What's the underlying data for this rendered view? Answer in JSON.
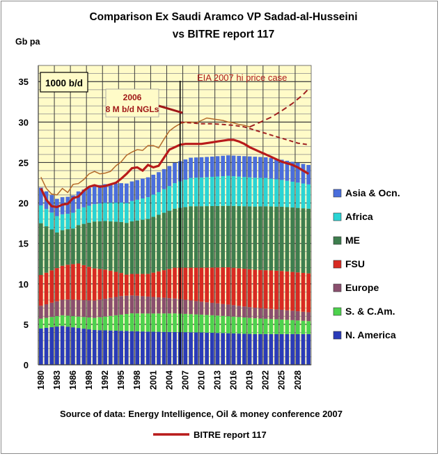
{
  "chart_data": {
    "type": "bar",
    "stacked": true,
    "title_line1": "Comparison Ex Saudi Aramco VP Sadad-al-Husseini",
    "title_line2": "vs BITRE report 117",
    "ylabel": "Gb pa",
    "ylim": [
      0,
      37
    ],
    "yticks": [
      0,
      5,
      10,
      15,
      20,
      25,
      30,
      35
    ],
    "x_start": 1980,
    "x_end": 2030,
    "xtick_labels": [
      "1980",
      "1983",
      "1986",
      "1989",
      "1992",
      "1995",
      "1998",
      "2001",
      "2004",
      "2007",
      "2010",
      "2013",
      "2016",
      "2019",
      "2022",
      "2025",
      "2028"
    ],
    "grid": true,
    "legend_position": "right",
    "annotations": {
      "unit_box": "1000 b/d",
      "ngl_label_line1": "2006",
      "ngl_label_line2": "8 M b/d NGLs",
      "eia_label": "EIA 2007 hi price case",
      "vertical_marker_year": 2006
    },
    "source_text": "Source of data: Energy Intelligence, Oil & money conference 2007",
    "line_legend_label": "BITRE report 117",
    "colors": {
      "plot_bg": "#fffbc8",
      "n_america": "#2a3bb8",
      "s_c_am": "#4dd24d",
      "europe": "#8a4f6e",
      "fsu": "#d82a22",
      "me": "#3e7e4e",
      "africa": "#2ad4d4",
      "asia_ocn": "#4a6edc",
      "bitre_line": "#b81a1a",
      "dashed_line": "#a02020",
      "thin_line": "#b46a2a"
    },
    "stacked_series": [
      {
        "name": "N. America",
        "key": "n_america",
        "anchors": [
          [
            1980,
            4.5
          ],
          [
            1984,
            4.8
          ],
          [
            1990,
            4.3
          ],
          [
            2000,
            4.1
          ],
          [
            2010,
            4.0
          ],
          [
            2020,
            3.8
          ],
          [
            2030,
            3.8
          ]
        ]
      },
      {
        "name": "S. & C.Am.",
        "key": "s_c_am",
        "anchors": [
          [
            1980,
            1.2
          ],
          [
            1990,
            1.5
          ],
          [
            1997,
            2.2
          ],
          [
            2005,
            2.3
          ],
          [
            2015,
            2.1
          ],
          [
            2025,
            1.8
          ],
          [
            2030,
            1.6
          ]
        ]
      },
      {
        "name": "Europe",
        "key": "europe",
        "anchors": [
          [
            1980,
            1.6
          ],
          [
            1985,
            2.0
          ],
          [
            1995,
            2.3
          ],
          [
            2000,
            2.1
          ],
          [
            2010,
            1.6
          ],
          [
            2020,
            1.3
          ],
          [
            2030,
            1.1
          ]
        ]
      },
      {
        "name": "FSU",
        "key": "fsu",
        "anchors": [
          [
            1980,
            3.8
          ],
          [
            1987,
            4.5
          ],
          [
            1992,
            3.6
          ],
          [
            1996,
            2.6
          ],
          [
            2000,
            2.8
          ],
          [
            2005,
            3.8
          ],
          [
            2015,
            4.6
          ],
          [
            2025,
            4.8
          ],
          [
            2030,
            4.8
          ]
        ]
      },
      {
        "name": "ME",
        "key": "me",
        "anchors": [
          [
            1980,
            6.4
          ],
          [
            1983,
            4.4
          ],
          [
            1986,
            4.4
          ],
          [
            1990,
            5.8
          ],
          [
            2000,
            6.8
          ],
          [
            2008,
            7.6
          ],
          [
            2015,
            7.6
          ],
          [
            2022,
            7.9
          ],
          [
            2030,
            8.0
          ]
        ]
      },
      {
        "name": "Africa",
        "key": "africa",
        "anchors": [
          [
            1980,
            2.2
          ],
          [
            1985,
            1.9
          ],
          [
            1995,
            2.4
          ],
          [
            2002,
            2.8
          ],
          [
            2008,
            3.5
          ],
          [
            2015,
            3.7
          ],
          [
            2022,
            3.5
          ],
          [
            2030,
            3.0
          ]
        ]
      },
      {
        "name": "Asia & Ocn.",
        "key": "asia_ocn",
        "anchors": [
          [
            1980,
            2.2
          ],
          [
            1985,
            2.1
          ],
          [
            1995,
            2.4
          ],
          [
            2005,
            2.5
          ],
          [
            2012,
            2.5
          ],
          [
            2020,
            2.6
          ],
          [
            2030,
            2.4
          ]
        ]
      }
    ],
    "bitre_line_points": [
      [
        1980,
        21.8
      ],
      [
        1981,
        20.4
      ],
      [
        1982,
        19.6
      ],
      [
        1983,
        19.5
      ],
      [
        1984,
        19.8
      ],
      [
        1985,
        19.9
      ],
      [
        1986,
        20.6
      ],
      [
        1987,
        20.8
      ],
      [
        1988,
        21.5
      ],
      [
        1989,
        22.0
      ],
      [
        1990,
        22.2
      ],
      [
        1991,
        22.0
      ],
      [
        1992,
        22.1
      ],
      [
        1993,
        22.3
      ],
      [
        1994,
        22.5
      ],
      [
        1995,
        23.0
      ],
      [
        1996,
        23.6
      ],
      [
        1997,
        24.3
      ],
      [
        1998,
        24.4
      ],
      [
        1999,
        24.0
      ],
      [
        2000,
        24.7
      ],
      [
        2001,
        24.4
      ],
      [
        2002,
        24.6
      ],
      [
        2003,
        25.6
      ],
      [
        2004,
        26.6
      ],
      [
        2005,
        26.9
      ],
      [
        2006,
        27.2
      ],
      [
        2007,
        27.3
      ],
      [
        2008,
        27.3
      ],
      [
        2009,
        27.3
      ],
      [
        2010,
        27.3
      ],
      [
        2011,
        27.4
      ],
      [
        2012,
        27.5
      ],
      [
        2013,
        27.6
      ],
      [
        2014,
        27.7
      ],
      [
        2015,
        27.8
      ],
      [
        2016,
        27.8
      ],
      [
        2017,
        27.6
      ],
      [
        2018,
        27.3
      ],
      [
        2019,
        26.9
      ],
      [
        2020,
        26.6
      ],
      [
        2021,
        26.3
      ],
      [
        2022,
        26.0
      ],
      [
        2023,
        25.7
      ],
      [
        2024,
        25.4
      ],
      [
        2025,
        25.1
      ],
      [
        2026,
        24.9
      ],
      [
        2027,
        24.7
      ],
      [
        2028,
        24.4
      ],
      [
        2029,
        24.0
      ],
      [
        2030,
        23.6
      ]
    ],
    "thin_line_points": [
      [
        1980,
        23.2
      ],
      [
        1981,
        21.8
      ],
      [
        1982,
        21.1
      ],
      [
        1983,
        21.0
      ],
      [
        1984,
        21.8
      ],
      [
        1985,
        21.3
      ],
      [
        1986,
        22.3
      ],
      [
        1987,
        22.4
      ],
      [
        1988,
        22.9
      ],
      [
        1989,
        23.6
      ],
      [
        1990,
        23.9
      ],
      [
        1991,
        23.6
      ],
      [
        1992,
        23.7
      ],
      [
        1993,
        23.9
      ],
      [
        1994,
        24.6
      ],
      [
        1995,
        25.1
      ],
      [
        1996,
        25.9
      ],
      [
        1997,
        26.3
      ],
      [
        1998,
        26.6
      ],
      [
        1999,
        26.5
      ],
      [
        2000,
        27.1
      ],
      [
        2001,
        27.1
      ],
      [
        2002,
        26.8
      ],
      [
        2003,
        27.9
      ],
      [
        2004,
        28.9
      ],
      [
        2005,
        29.4
      ],
      [
        2006,
        29.8
      ],
      [
        2007,
        30.0
      ],
      [
        2008,
        30.0
      ],
      [
        2009,
        29.9
      ],
      [
        2010,
        30.2
      ],
      [
        2011,
        30.5
      ],
      [
        2012,
        30.4
      ],
      [
        2013,
        30.3
      ],
      [
        2014,
        30.2
      ],
      [
        2015,
        30.0
      ],
      [
        2016,
        29.9
      ],
      [
        2017,
        29.7
      ],
      [
        2018,
        29.6
      ],
      [
        2019,
        29.4
      ]
    ],
    "dashed_line_points": [
      [
        2006,
        30.0
      ],
      [
        2008,
        29.9
      ],
      [
        2010,
        29.8
      ],
      [
        2012,
        29.8
      ],
      [
        2014,
        29.7
      ],
      [
        2016,
        29.6
      ],
      [
        2018,
        29.4
      ],
      [
        2019,
        29.2
      ],
      [
        2020,
        29.0
      ],
      [
        2022,
        28.6
      ],
      [
        2024,
        28.2
      ],
      [
        2026,
        27.8
      ],
      [
        2028,
        27.4
      ],
      [
        2030,
        27.2
      ]
    ],
    "eia_line_points": [
      [
        2019,
        29.4
      ],
      [
        2021,
        30.0
      ],
      [
        2023,
        30.6
      ],
      [
        2025,
        31.4
      ],
      [
        2027,
        32.3
      ],
      [
        2029,
        33.4
      ],
      [
        2030,
        34.1
      ]
    ]
  }
}
